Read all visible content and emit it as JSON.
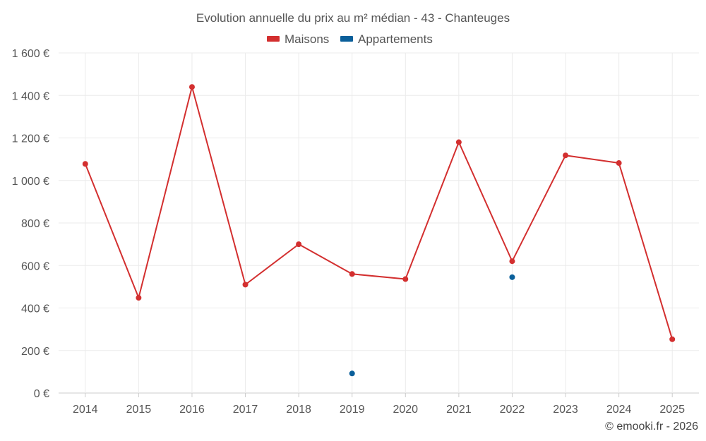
{
  "chart_data": {
    "type": "line",
    "title": "Evolution annuelle du prix au m² médian - 43 - Chanteuges",
    "categories": [
      "2014",
      "2015",
      "2016",
      "2017",
      "2018",
      "2019",
      "2020",
      "2021",
      "2022",
      "2023",
      "2024",
      "2025"
    ],
    "series": [
      {
        "name": "Maisons",
        "color": "#d32f2f",
        "style": "line-markers",
        "values": [
          1078,
          448,
          1440,
          510,
          700,
          560,
          536,
          1180,
          620,
          1118,
          1082,
          253
        ]
      },
      {
        "name": "Appartements",
        "color": "#0a5f9a",
        "style": "markers",
        "values": [
          null,
          null,
          null,
          null,
          null,
          92,
          null,
          null,
          545,
          null,
          null,
          null
        ]
      }
    ],
    "ylim": [
      0,
      1600
    ],
    "yticks": [
      0,
      200,
      400,
      600,
      800,
      1000,
      1200,
      1400,
      1600
    ],
    "ytick_labels": [
      "0 €",
      "200 €",
      "400 €",
      "600 €",
      "800 €",
      "1 000 €",
      "1 200 €",
      "1 400 €",
      "1 600 €"
    ],
    "legend_position": "top-center",
    "grid": true,
    "credit": "© emooki.fr - 2026"
  }
}
